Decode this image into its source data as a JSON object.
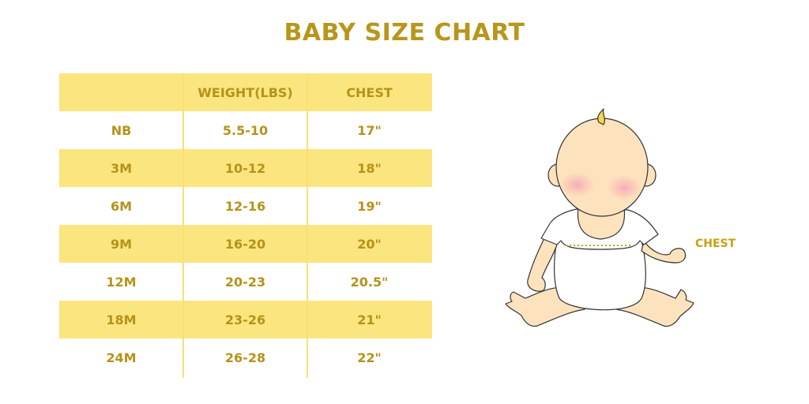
{
  "title": "BABY SIZE CHART",
  "table": {
    "headers": [
      "",
      "WEIGHT(LBS)",
      "CHEST"
    ],
    "rows": [
      [
        "NB",
        "5.5-10",
        "17\""
      ],
      [
        "3M",
        "10-12",
        "18\""
      ],
      [
        "6M",
        "12-16",
        "19\""
      ],
      [
        "9M",
        "16-20",
        "20\""
      ],
      [
        "12M",
        "20-23",
        "20.5\""
      ],
      [
        "18M",
        "23-26",
        "21\""
      ],
      [
        "24M",
        "26-28",
        "22\""
      ]
    ]
  },
  "illustration": {
    "chest_label": "CHEST"
  },
  "colors": {
    "accent_text": "#b5921a",
    "row_yellow": "#fbe57f",
    "skin": "#fde3bd"
  }
}
